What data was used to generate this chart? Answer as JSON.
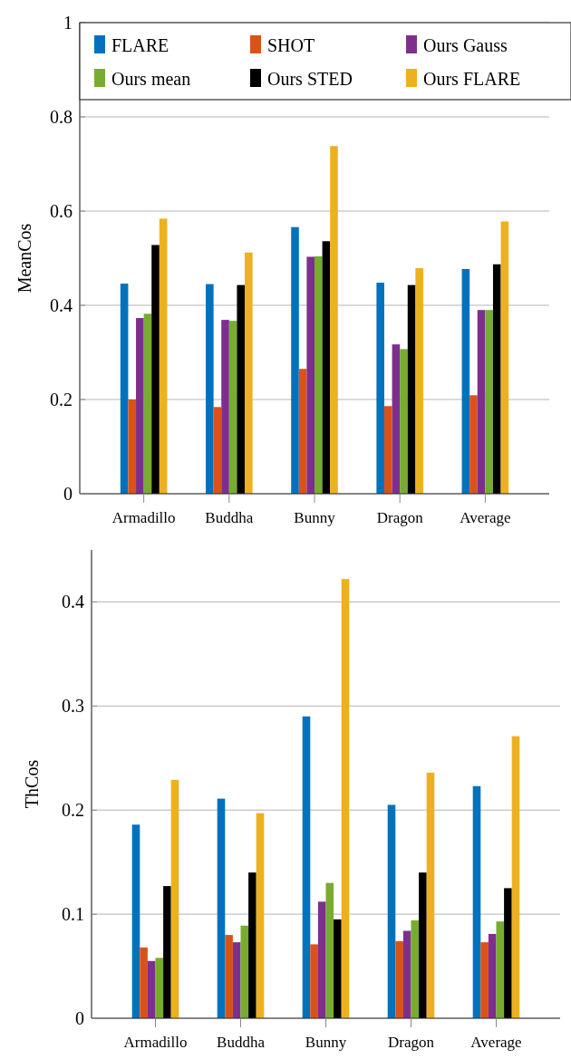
{
  "chart_data": [
    {
      "type": "bar",
      "ylabel": "MeanCos",
      "categories": [
        "Armadillo",
        "Buddha",
        "Bunny",
        "Dragon",
        "Average"
      ],
      "ylim": [
        0,
        1
      ],
      "yticks": [
        0,
        0.2,
        0.4,
        0.6,
        0.8,
        1
      ],
      "grid": "y",
      "legend": "top",
      "series": [
        {
          "name": "FLARE",
          "color": "#0072bd",
          "values": [
            0.446,
            0.445,
            0.566,
            0.448,
            0.477
          ]
        },
        {
          "name": "SHOT",
          "color": "#d95319",
          "values": [
            0.2,
            0.184,
            0.265,
            0.186,
            0.209
          ]
        },
        {
          "name": "Ours Gauss",
          "color": "#7e2f8e",
          "values": [
            0.373,
            0.369,
            0.503,
            0.317,
            0.39
          ]
        },
        {
          "name": "Ours mean",
          "color": "#77ac30",
          "values": [
            0.382,
            0.367,
            0.504,
            0.307,
            0.39
          ]
        },
        {
          "name": "Ours STED",
          "color": "#000000",
          "values": [
            0.528,
            0.443,
            0.536,
            0.443,
            0.487
          ]
        },
        {
          "name": "Ours FLARE",
          "color": "#edb120",
          "values": [
            0.584,
            0.512,
            0.738,
            0.479,
            0.578
          ]
        }
      ]
    },
    {
      "type": "bar",
      "ylabel": "ThCos",
      "categories": [
        "Armadillo",
        "Buddha",
        "Bunny",
        "Dragon",
        "Average"
      ],
      "ylim": [
        0,
        0.45
      ],
      "yticks": [
        0,
        0.1,
        0.2,
        0.3,
        0.4
      ],
      "grid": "y",
      "series": [
        {
          "color": "#0072bd",
          "values": [
            0.186,
            0.211,
            0.29,
            0.205,
            0.223
          ]
        },
        {
          "color": "#d95319",
          "values": [
            0.068,
            0.08,
            0.071,
            0.074,
            0.073
          ]
        },
        {
          "color": "#7e2f8e",
          "values": [
            0.055,
            0.073,
            0.112,
            0.084,
            0.081
          ]
        },
        {
          "color": "#77ac30",
          "values": [
            0.058,
            0.089,
            0.13,
            0.094,
            0.093
          ]
        },
        {
          "color": "#000000",
          "values": [
            0.127,
            0.14,
            0.095,
            0.14,
            0.125
          ]
        },
        {
          "color": "#edb120",
          "values": [
            0.229,
            0.197,
            0.422,
            0.236,
            0.271
          ]
        }
      ]
    }
  ]
}
